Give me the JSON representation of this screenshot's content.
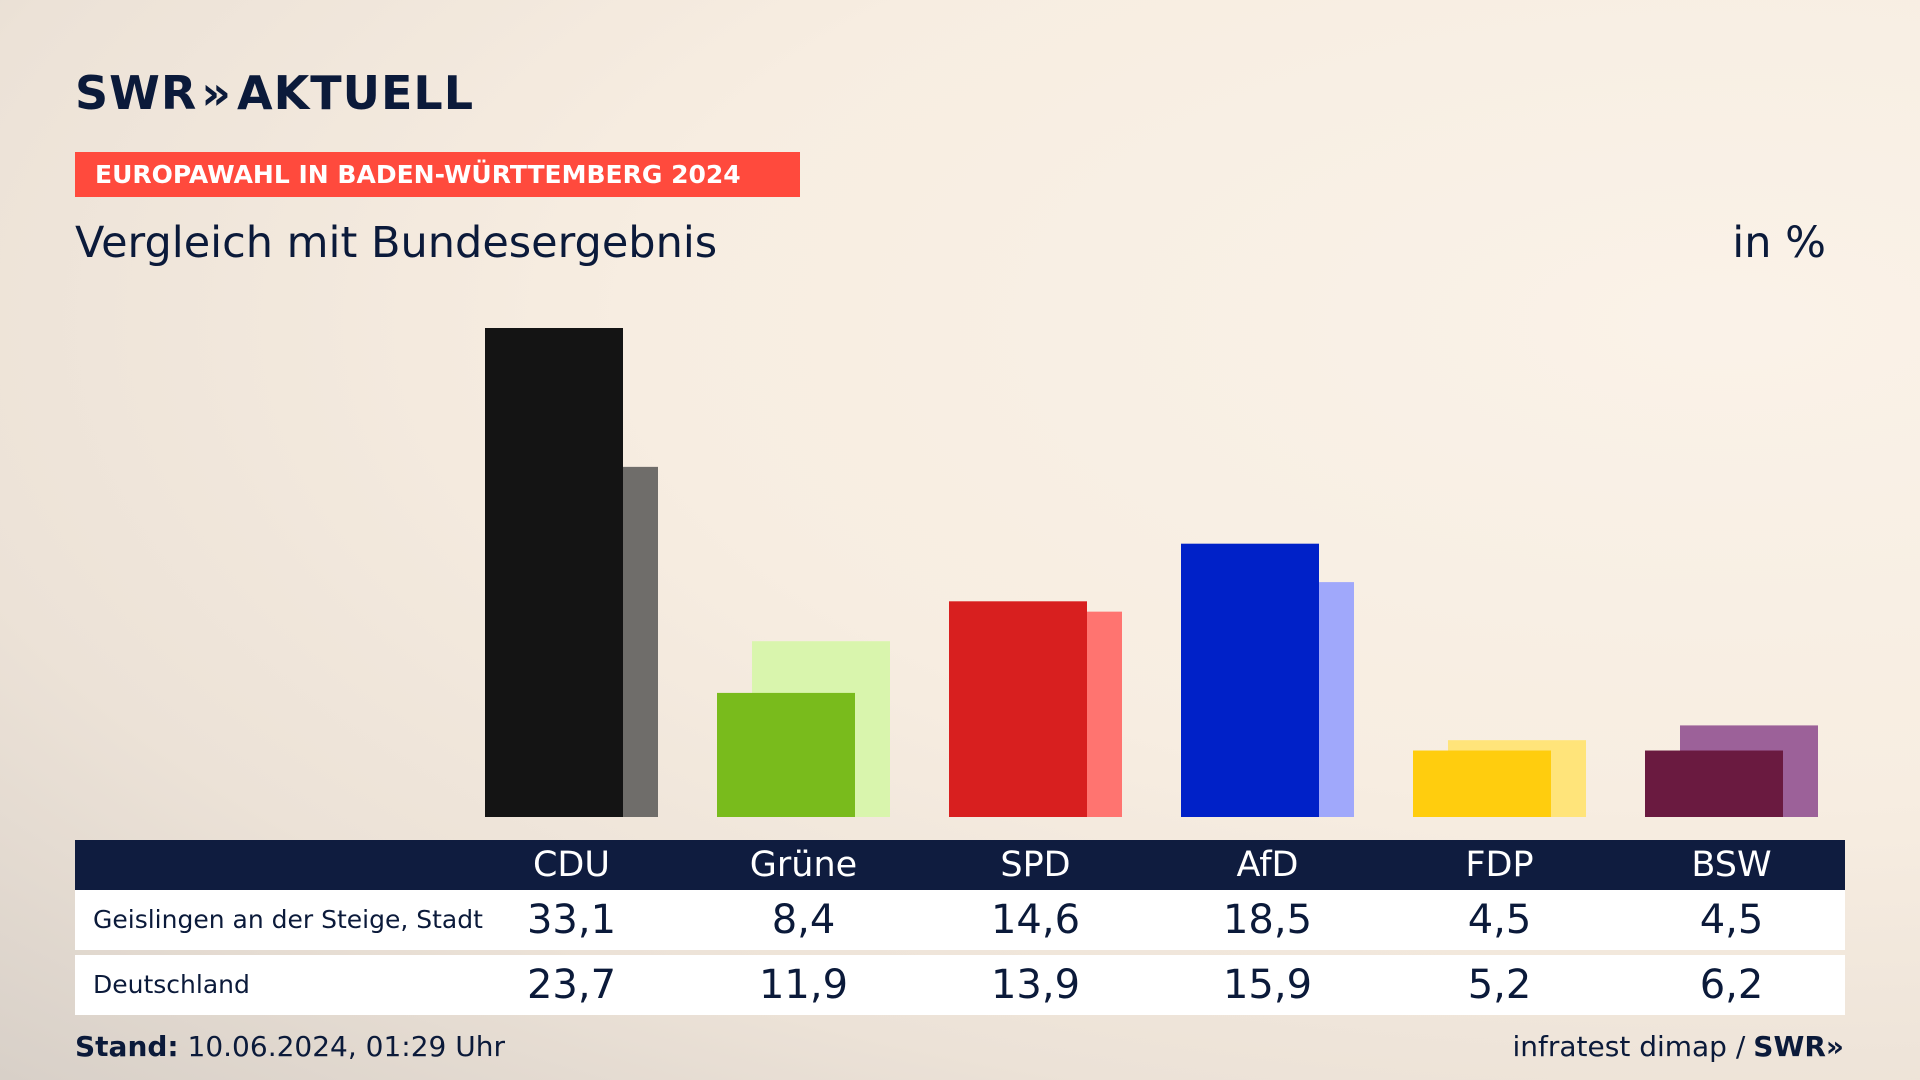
{
  "header": {
    "logo_left": "SWR",
    "logo_arrows": "»",
    "logo_right": "AKTUELL",
    "tag": "EUROPAWAHL IN BADEN-WÜRTTEMBERG 2024",
    "subtitle": "Vergleich mit Bundesergebnis",
    "unit": "in %"
  },
  "footer": {
    "stand_label": "Stand:",
    "stand_value": "10.06.2024, 01:29 Uhr",
    "source": "infratest dimap /",
    "source_logo": "SWR»"
  },
  "chart_data": {
    "type": "bar",
    "categories": [
      "CDU",
      "Grüne",
      "SPD",
      "AfD",
      "FDP",
      "BSW"
    ],
    "series": [
      {
        "name": "Geislingen an der Steige, Stadt",
        "values": [
          33.1,
          8.4,
          14.6,
          18.5,
          4.5,
          4.5
        ]
      },
      {
        "name": "Deutschland",
        "values": [
          23.7,
          11.9,
          13.9,
          15.9,
          5.2,
          6.2
        ]
      }
    ],
    "values_display": [
      [
        "33,1",
        "8,4",
        "14,6",
        "18,5",
        "4,5",
        "4,5"
      ],
      [
        "23,7",
        "11,9",
        "13,9",
        "15,9",
        "5,2",
        "6,2"
      ]
    ],
    "colors_primary": [
      "#141414",
      "#79bb1c",
      "#d81f1f",
      "#0021c8",
      "#ffcd0e",
      "#6a1a40"
    ],
    "colors_secondary": [
      "#6f6d6a",
      "#d9f5ad",
      "#ff7470",
      "#a0a8fb",
      "#ffe47a",
      "#9c6199"
    ],
    "ylim": [
      0,
      33.1
    ]
  }
}
